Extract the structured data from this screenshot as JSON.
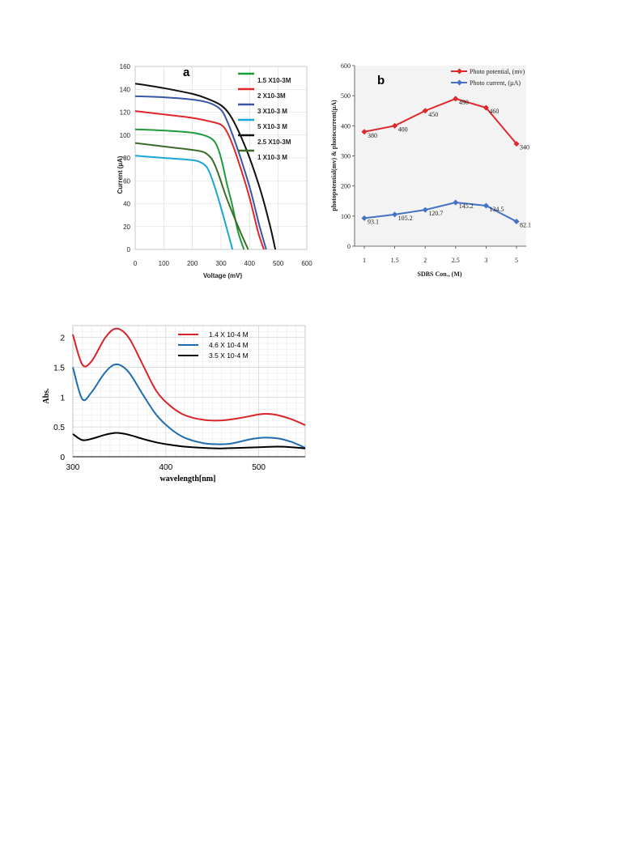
{
  "chart_data": [
    {
      "type": "line",
      "panel_label": "a",
      "xlabel": "Voltage (mV)",
      "ylabel": "Current (µA)",
      "xlim": [
        0,
        600
      ],
      "ylim": [
        0,
        160
      ],
      "xticks": [
        0,
        100,
        200,
        300,
        400,
        500,
        600
      ],
      "yticks": [
        0,
        20,
        40,
        60,
        80,
        100,
        120,
        140,
        160
      ],
      "grid": true,
      "legend_position": "top-right",
      "series": [
        {
          "name": "1.5 X10-3M",
          "color": "#1e9a3c",
          "x": [
            0,
            100,
            200,
            250,
            275,
            290,
            305,
            320,
            340,
            360,
            380
          ],
          "y": [
            105,
            104,
            102,
            99,
            95,
            88,
            75,
            58,
            38,
            15,
            0
          ]
        },
        {
          "name": "2 X10-3M",
          "color": "#e0272c",
          "x": [
            0,
            100,
            200,
            260,
            300,
            320,
            340,
            370,
            400,
            430,
            450
          ],
          "y": [
            121,
            118,
            115,
            112,
            109,
            103,
            92,
            70,
            45,
            15,
            0
          ]
        },
        {
          "name": "3 X10-3 M",
          "color": "#3a56a8",
          "x": [
            0,
            100,
            200,
            260,
            300,
            320,
            345,
            375,
            405,
            435,
            458
          ],
          "y": [
            134,
            133,
            131,
            128,
            122,
            113,
            97,
            75,
            50,
            20,
            0
          ]
        },
        {
          "name": "5 X10-3 M",
          "color": "#1aa7d8",
          "x": [
            0,
            100,
            200,
            230,
            250,
            262,
            275,
            290,
            305,
            325,
            340
          ],
          "y": [
            82,
            80,
            78,
            76,
            72,
            66,
            57,
            45,
            32,
            14,
            0
          ]
        },
        {
          "name": "2.5 X10-3M",
          "color": "#111111",
          "x": [
            0,
            100,
            200,
            250,
            300,
            330,
            360,
            400,
            440,
            470,
            490
          ],
          "y": [
            145,
            141,
            136,
            132,
            126,
            118,
            104,
            80,
            50,
            22,
            0
          ]
        },
        {
          "name": "1 X10-3 M",
          "color": "#3d6b2a",
          "x": [
            0,
            100,
            200,
            240,
            265,
            280,
            295,
            315,
            340,
            370,
            395
          ],
          "y": [
            93,
            90,
            87,
            85,
            80,
            73,
            63,
            48,
            32,
            14,
            0
          ]
        }
      ]
    },
    {
      "type": "line",
      "panel_label": "b",
      "xlabel": "SDBS Con., (M)",
      "ylabel": "photopotential(mv) & photocurrent(µA)",
      "categories": [
        "1",
        "1.5",
        "2",
        "2.5",
        "3",
        "5"
      ],
      "ylim": [
        0,
        600
      ],
      "yticks": [
        0,
        100,
        200,
        300,
        400,
        500,
        600
      ],
      "legend_position": "top-right",
      "series": [
        {
          "name": "Photo potential, (mv)",
          "color": "#e0272c",
          "values": [
            380,
            400,
            450,
            490,
            460,
            340
          ],
          "data_labels": [
            "380",
            "400",
            "450",
            "490",
            "460",
            "340"
          ]
        },
        {
          "name": "Photo current, (µA)",
          "color": "#4472c4",
          "values": [
            93.1,
            105.2,
            120.7,
            145.2,
            134.5,
            82.1
          ],
          "data_labels": [
            "93.1",
            "105.2",
            "120.7",
            "145.2",
            "134.5",
            "82.1"
          ]
        }
      ]
    },
    {
      "type": "line",
      "xlabel": "wavelength[nm]",
      "ylabel": "Abs.",
      "xlim": [
        300,
        550
      ],
      "ylim": [
        0,
        2.2
      ],
      "xticks": [
        300,
        400,
        500
      ],
      "yticks": [
        0,
        0.5,
        1,
        1.5,
        2
      ],
      "grid": true,
      "legend_position": "top-right",
      "series": [
        {
          "name": "1.4 X 10-4 M",
          "color": "#d8232a",
          "x": [
            300,
            310,
            320,
            335,
            347,
            360,
            375,
            390,
            405,
            420,
            440,
            460,
            480,
            500,
            510,
            520,
            535,
            550
          ],
          "y": [
            2.05,
            1.55,
            1.6,
            2.0,
            2.15,
            2.0,
            1.55,
            1.1,
            0.85,
            0.7,
            0.62,
            0.61,
            0.65,
            0.71,
            0.72,
            0.7,
            0.63,
            0.53
          ]
        },
        {
          "name": "4.6 X 10-4 M",
          "color": "#1f6db0",
          "x": [
            300,
            310,
            320,
            335,
            347,
            360,
            375,
            390,
            405,
            420,
            440,
            455,
            470,
            490,
            505,
            520,
            535,
            550
          ],
          "y": [
            1.5,
            0.97,
            1.08,
            1.42,
            1.55,
            1.42,
            1.05,
            0.7,
            0.47,
            0.32,
            0.23,
            0.21,
            0.22,
            0.29,
            0.32,
            0.31,
            0.25,
            0.15
          ]
        },
        {
          "name": "3.5 X 10-4 M",
          "color": "#000000",
          "x": [
            300,
            310,
            320,
            335,
            347,
            360,
            375,
            390,
            405,
            420,
            440,
            460,
            480,
            500,
            520,
            535,
            550
          ],
          "y": [
            0.38,
            0.28,
            0.3,
            0.37,
            0.4,
            0.37,
            0.3,
            0.24,
            0.2,
            0.17,
            0.15,
            0.14,
            0.15,
            0.16,
            0.17,
            0.16,
            0.14
          ]
        }
      ]
    }
  ]
}
